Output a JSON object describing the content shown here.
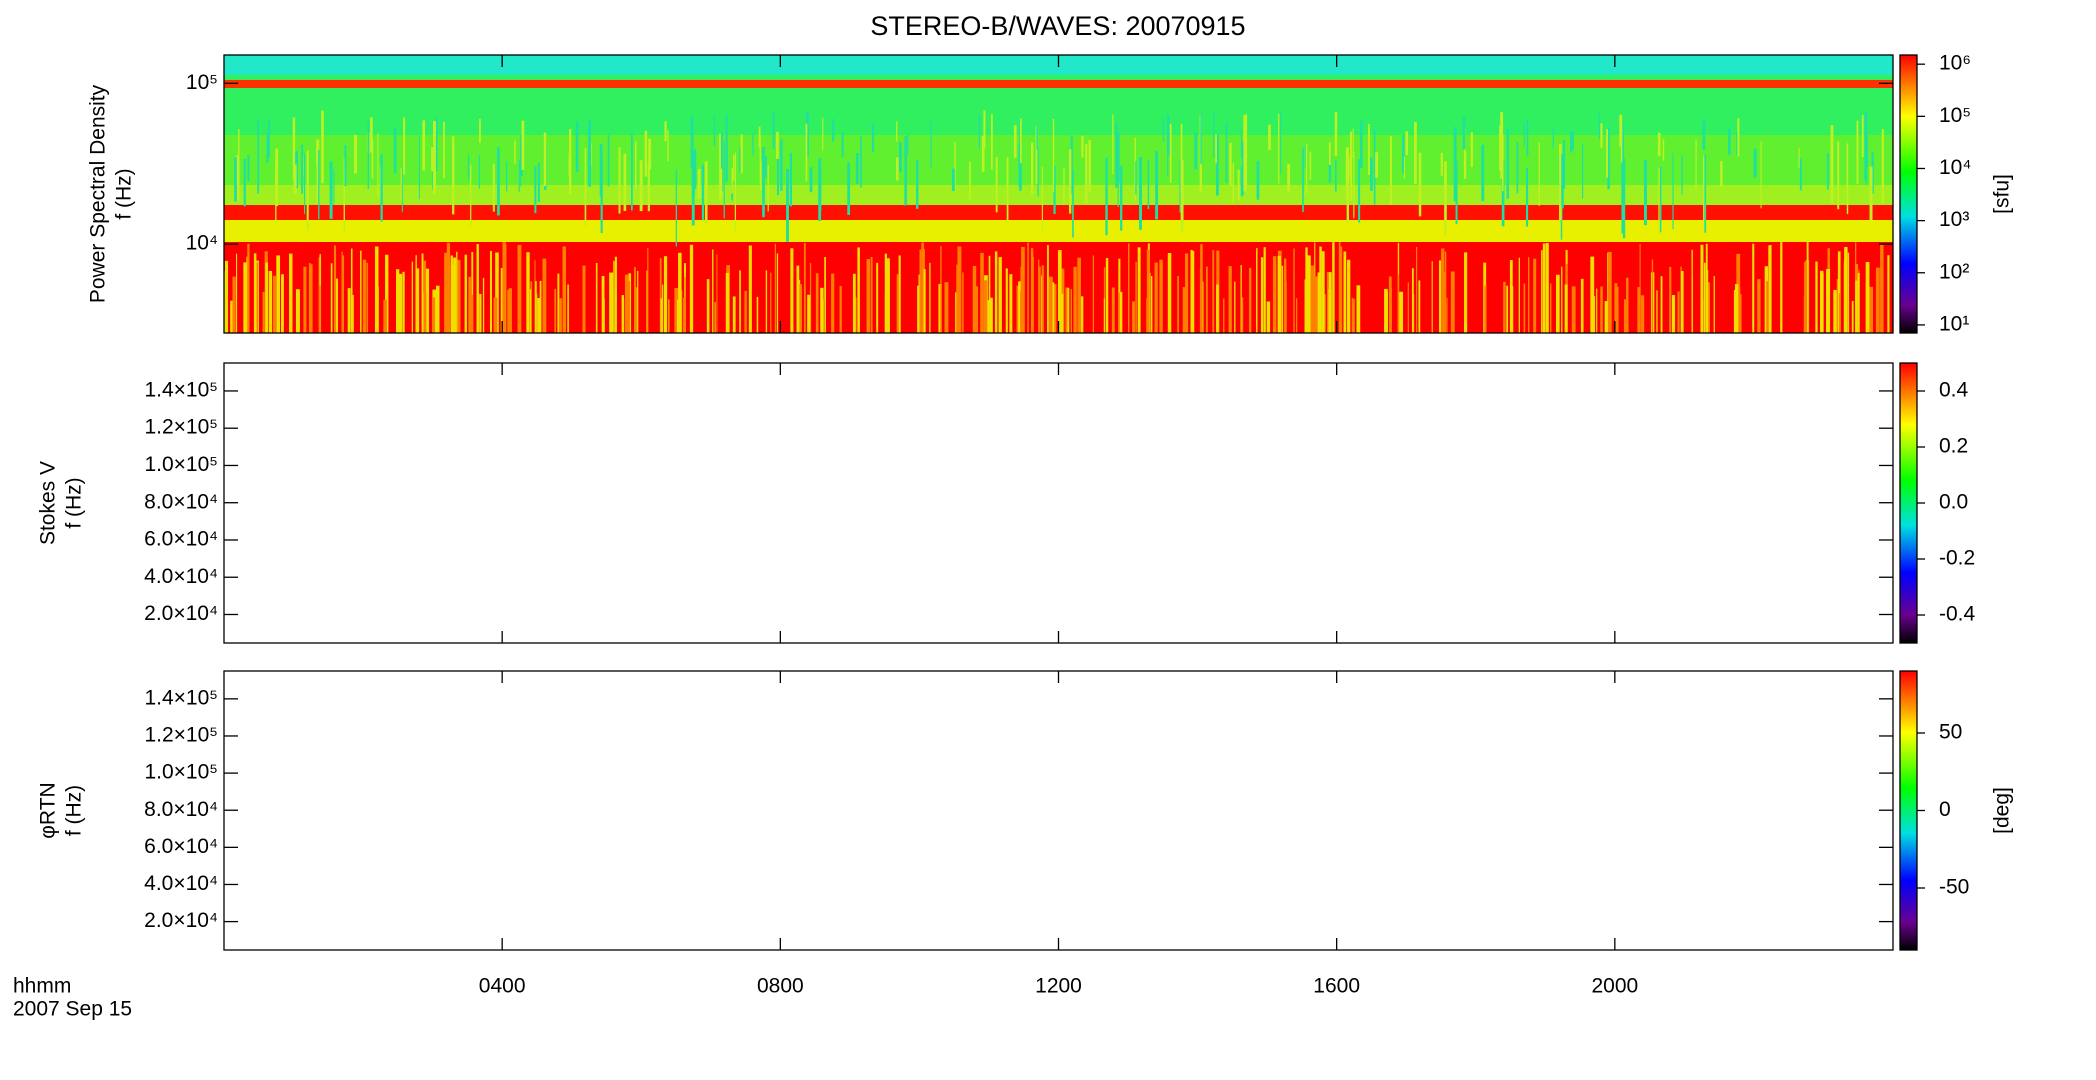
{
  "chart_data": [
    {
      "type": "spectrogram",
      "title": "STEREO-B/WAVES: 20070915",
      "ylabel": [
        "Power Spectral Density",
        "f (Hz)"
      ],
      "ylog": true,
      "ylim": [
        2800,
        150000
      ],
      "yticks": [
        {
          "value": 10000,
          "label": "10⁴"
        },
        {
          "value": 100000,
          "label": "10⁵"
        }
      ],
      "colorbar_label": "[sfu]",
      "zlog": true,
      "zlim": [
        7,
        1500000
      ],
      "zticks": [
        {
          "value": 10,
          "label": "10¹"
        },
        {
          "value": 100,
          "label": "10²"
        },
        {
          "value": 1000,
          "label": "10³"
        },
        {
          "value": 10000,
          "label": "10⁴"
        },
        {
          "value": 100000,
          "label": "10⁵"
        },
        {
          "value": 1000000,
          "label": "10⁶"
        }
      ]
    },
    {
      "type": "spectrogram",
      "ylabel": [
        "Stokes V",
        "f (Hz)"
      ],
      "ylog": false,
      "ylim": [
        4700,
        155000
      ],
      "yticks": [
        {
          "value": 20000,
          "label": "2.0×10⁴"
        },
        {
          "value": 40000,
          "label": "4.0×10⁴"
        },
        {
          "value": 60000,
          "label": "6.0×10⁴"
        },
        {
          "value": 80000,
          "label": "8.0×10⁴"
        },
        {
          "value": 100000,
          "label": "1.0×10⁵"
        },
        {
          "value": 120000,
          "label": "1.2×10⁵"
        },
        {
          "value": 140000,
          "label": "1.4×10⁵"
        }
      ],
      "zlog": false,
      "zlim": [
        -0.5,
        0.5
      ],
      "zticks": [
        -0.4,
        -0.2,
        {
          "value": 0,
          "label": "0.0"
        },
        0.2,
        0.4
      ]
    },
    {
      "type": "spectrogram",
      "ylabel": [
        "φRTN",
        "f (Hz)"
      ],
      "ylog": false,
      "ylim": [
        4700,
        155000
      ],
      "yticks": [
        {
          "value": 20000,
          "label": "2.0×10⁴"
        },
        {
          "value": 40000,
          "label": "4.0×10⁴"
        },
        {
          "value": 60000,
          "label": "6.0×10⁴"
        },
        {
          "value": 80000,
          "label": "8.0×10⁴"
        },
        {
          "value": 100000,
          "label": "1.0×10⁵"
        },
        {
          "value": 120000,
          "label": "1.2×10⁵"
        },
        {
          "value": 140000,
          "label": "1.4×10⁵"
        }
      ],
      "colorbar_label": "[deg]",
      "zlog": false,
      "zlim": [
        -90,
        90
      ],
      "zticks": [
        -50,
        0,
        50
      ],
      "xlabel": "hhmm",
      "date": "2007 Sep 15",
      "xlim": [
        0,
        24
      ],
      "xticks": [
        {
          "value": 4,
          "label": "0400"
        },
        {
          "value": 8,
          "label": "0800"
        },
        {
          "value": 12,
          "label": "1200"
        },
        {
          "value": 16,
          "label": "1600"
        },
        {
          "value": 20,
          "label": "2000"
        }
      ]
    }
  ]
}
